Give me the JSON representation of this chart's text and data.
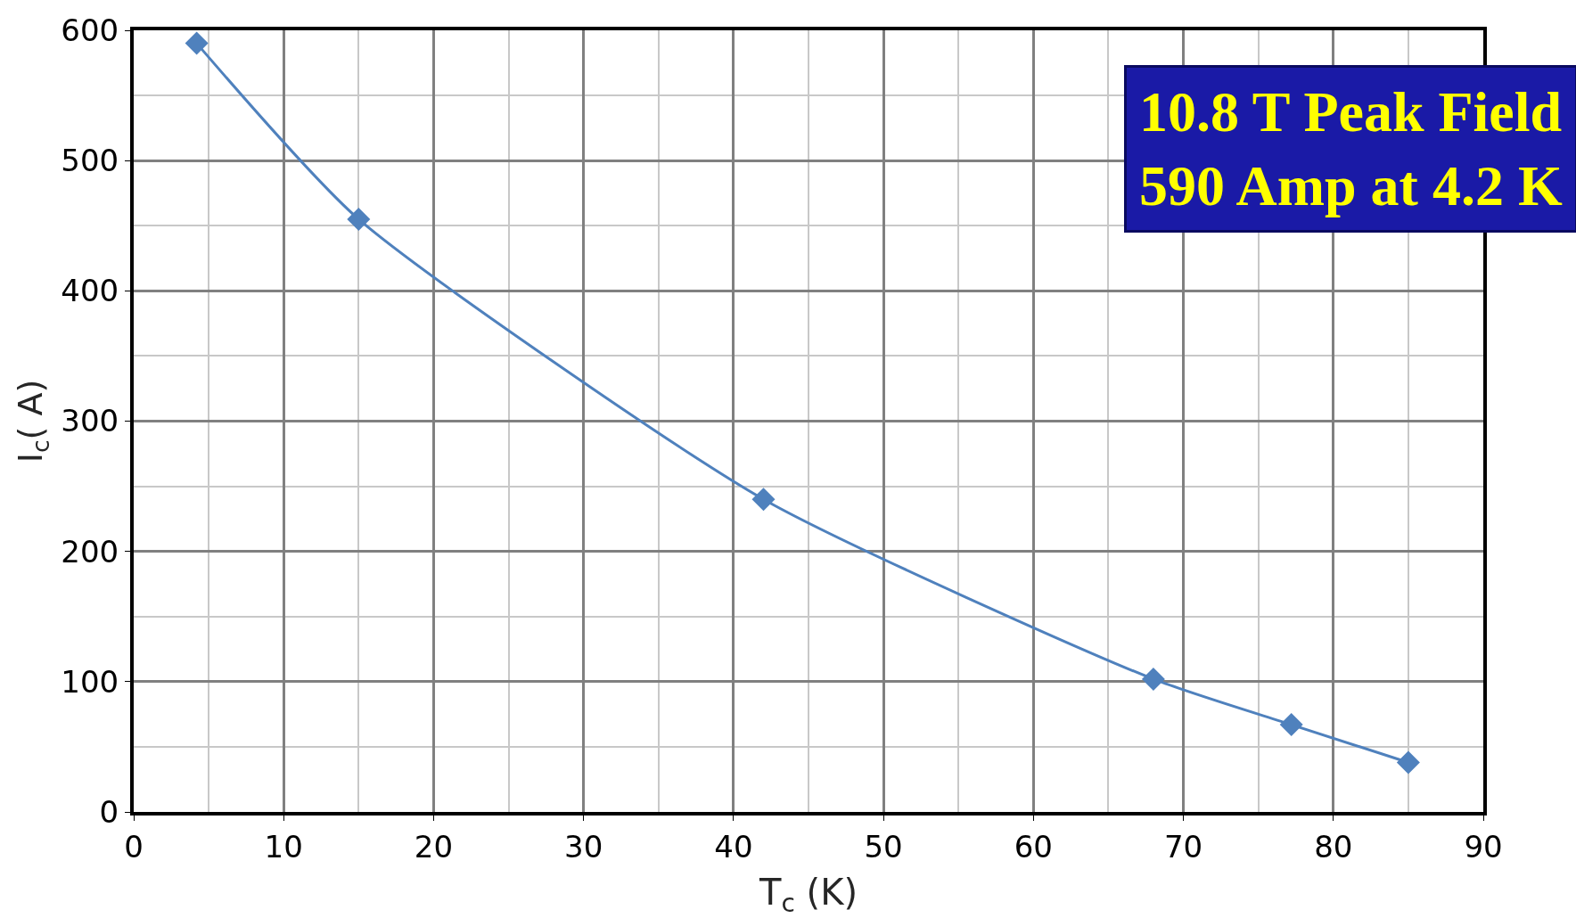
{
  "chart_data": {
    "type": "line",
    "xlabel": "T$_{c}$ (K)",
    "ylabel": "I$_{c}$( A)",
    "x": [
      4.2,
      15,
      42,
      68,
      77.2,
      85
    ],
    "series": [
      {
        "color": "#4f81bd",
        "values": [
          590,
          455,
          240,
          102,
          67,
          38
        ]
      }
    ],
    "xlim": [
      0,
      90
    ],
    "xticks": [
      0,
      10,
      20,
      30,
      40,
      50,
      60,
      70,
      80,
      90
    ],
    "ylim": [
      0,
      600
    ],
    "yticks": [
      0,
      100,
      200,
      300,
      400,
      500,
      600
    ],
    "grid": true,
    "marker": "diamond",
    "line_style": "solid",
    "legend": false,
    "annotations": [
      "10.8 T Peak Field",
      "590 Amp at 4.2 K"
    ]
  }
}
